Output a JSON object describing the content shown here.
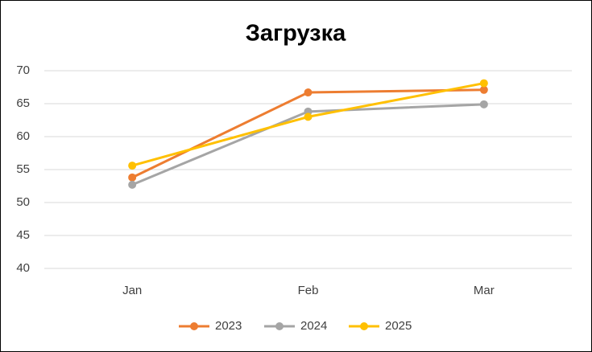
{
  "chart_data": {
    "type": "line",
    "title": "Загрузка",
    "categories": [
      "Jan",
      "Feb",
      "Mar"
    ],
    "series": [
      {
        "name": "2023",
        "color": "#ed7d31",
        "values": [
          53.8,
          66.7,
          67.1
        ]
      },
      {
        "name": "2024",
        "color": "#a5a5a5",
        "values": [
          52.7,
          63.8,
          64.9
        ]
      },
      {
        "name": "2025",
        "color": "#ffc000",
        "values": [
          55.6,
          63.0,
          68.1
        ]
      }
    ],
    "ylim": [
      40,
      70
    ],
    "yticks": [
      40,
      45,
      50,
      55,
      60,
      65,
      70
    ],
    "grid": true,
    "legend": "bottom"
  }
}
